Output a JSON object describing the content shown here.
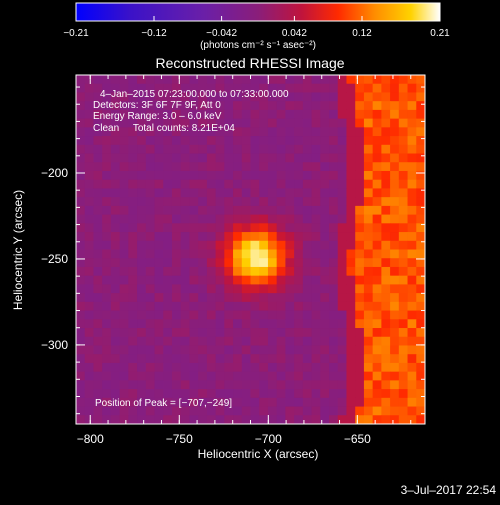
{
  "chart_data": {
    "type": "heatmap",
    "title": "Reconstructed RHESSI Image",
    "xlabel": "Heliocentric X (arcsec)",
    "ylabel": "Heliocentric Y (arcsec)",
    "xlim": [
      -808,
      -612
    ],
    "ylim": [
      -346,
      -143
    ],
    "x_ticks": [
      -800,
      -750,
      -700,
      -650
    ],
    "x_tick_labels": [
      "−800",
      "−750",
      "−700",
      "−650"
    ],
    "y_ticks": [
      -200,
      -250,
      -300
    ],
    "y_tick_labels": [
      "−200",
      "−250",
      "−300"
    ],
    "annotations": [
      "4–Jan–2015 07:23:00.000 to 07:33:00.000",
      "Detectors: 3F 6F 7F 9F, Att 0",
      "Energy Range: 3.0 – 6.0 keV",
      "Clean     Total counts: 8.21E+04"
    ],
    "peak_label": "Position of Peak = [−707,−249]",
    "peak": {
      "x": -707,
      "y": -249
    },
    "colorbar": {
      "ticks": [
        -0.21,
        -0.12,
        -0.042,
        0.042,
        0.12,
        0.21
      ],
      "tick_labels": [
        "−0.21",
        "−0.12",
        "−0.042",
        "0.042",
        "0.12",
        "0.21"
      ],
      "unit": "(photons cm⁻² s⁻¹ asec⁻²)",
      "min": -0.21,
      "max": 0.21,
      "colors": [
        "#0000ff",
        "#3b12c8",
        "#6a1fa8",
        "#8a1e7a",
        "#c0143c",
        "#ff2a00",
        "#ff8c00",
        "#ffd200",
        "#ffffff"
      ]
    },
    "image_values": {
      "background": 0.0,
      "source_peak": 0.21,
      "limb_region_start_x": -650,
      "limb_level": 0.12
    },
    "timestamp": "3–Jul–2017 22:54"
  }
}
